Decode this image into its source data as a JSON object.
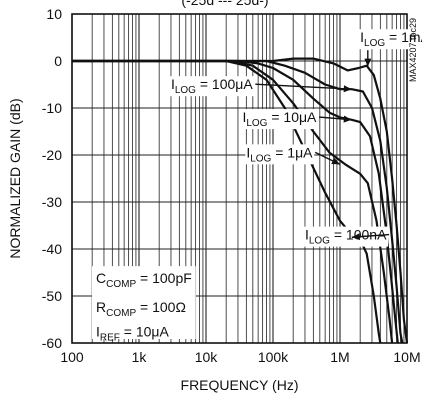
{
  "chart_data": {
    "type": "line",
    "title_fragment": "(-25d --- 25d-)",
    "xlabel": "FREQUENCY (Hz)",
    "ylabel": "NORMALIZED GAIN (dB)",
    "x_scale": "log",
    "xlim": [
      100,
      10000000
    ],
    "ylim": [
      -60,
      10
    ],
    "x_ticks": [
      {
        "value": 100,
        "label": "100"
      },
      {
        "value": 1000,
        "label": "1k"
      },
      {
        "value": 10000,
        "label": "10k"
      },
      {
        "value": 100000,
        "label": "100k"
      },
      {
        "value": 1000000,
        "label": "1M"
      },
      {
        "value": 10000000,
        "label": "10M"
      }
    ],
    "y_ticks": [
      10,
      0,
      -10,
      -20,
      -30,
      -40,
      -50,
      -60
    ],
    "grid": true,
    "part_code": "MAX4207 toc29",
    "conditions": [
      {
        "main": "C",
        "sub": "COMP",
        "rest": " = 100pF"
      },
      {
        "main": "R",
        "sub": "COMP",
        "rest": " = 100Ω"
      },
      {
        "main": "I",
        "sub": "REF",
        "rest": " = 10μA"
      }
    ],
    "series": [
      {
        "name_main": "I",
        "name_sub": "LOG",
        "name_rest": " = 1mA",
        "points": [
          [
            100,
            0
          ],
          [
            30000,
            0
          ],
          [
            100000,
            0
          ],
          [
            200000,
            0.5
          ],
          [
            400000,
            0.5
          ],
          [
            800000,
            -0.5
          ],
          [
            1300000,
            -2
          ],
          [
            1900000,
            -1.5
          ],
          [
            2500000,
            -1
          ],
          [
            3200000,
            -3
          ],
          [
            4000000,
            -8
          ],
          [
            5000000,
            -15
          ],
          [
            6000000,
            -25
          ],
          [
            7000000,
            -35
          ],
          [
            8000000,
            -45
          ],
          [
            9000000,
            -55
          ],
          [
            10000000,
            -60
          ]
        ]
      },
      {
        "name_main": "I",
        "name_sub": "LOG",
        "name_rest": " = 100μA",
        "points": [
          [
            100,
            0
          ],
          [
            30000,
            0
          ],
          [
            80000,
            0
          ],
          [
            150000,
            -1
          ],
          [
            300000,
            -2.5
          ],
          [
            600000,
            -5
          ],
          [
            1000000,
            -6
          ],
          [
            1500000,
            -6
          ],
          [
            2200000,
            -6.5
          ],
          [
            3000000,
            -10
          ],
          [
            4000000,
            -17
          ],
          [
            5000000,
            -27
          ],
          [
            6000000,
            -38
          ],
          [
            7000000,
            -48
          ],
          [
            8000000,
            -58
          ],
          [
            8500000,
            -60
          ]
        ]
      },
      {
        "name_main": "I",
        "name_sub": "LOG",
        "name_rest": " = 10μA",
        "points": [
          [
            100,
            0
          ],
          [
            30000,
            0
          ],
          [
            60000,
            -0.5
          ],
          [
            100000,
            -1.5
          ],
          [
            200000,
            -4
          ],
          [
            400000,
            -8
          ],
          [
            700000,
            -11
          ],
          [
            1000000,
            -12
          ],
          [
            1500000,
            -12.5
          ],
          [
            2000000,
            -13
          ],
          [
            2800000,
            -16
          ],
          [
            3800000,
            -24
          ],
          [
            4800000,
            -35
          ],
          [
            5800000,
            -46
          ],
          [
            6800000,
            -56
          ],
          [
            7300000,
            -60
          ]
        ]
      },
      {
        "name_main": "I",
        "name_sub": "LOG",
        "name_rest": " = 1μA",
        "points": [
          [
            100,
            0
          ],
          [
            25000,
            0
          ],
          [
            50000,
            -1
          ],
          [
            100000,
            -4
          ],
          [
            200000,
            -9
          ],
          [
            400000,
            -15
          ],
          [
            700000,
            -19.5
          ],
          [
            1200000,
            -22
          ],
          [
            2000000,
            -24
          ],
          [
            2600000,
            -26
          ],
          [
            3500000,
            -34
          ],
          [
            4500000,
            -45
          ],
          [
            5500000,
            -55
          ],
          [
            6000000,
            -60
          ]
        ]
      },
      {
        "name_main": "I",
        "name_sub": "LOG",
        "name_rest": " = 100nA",
        "points": [
          [
            100,
            0
          ],
          [
            20000,
            0
          ],
          [
            40000,
            -1
          ],
          [
            80000,
            -4
          ],
          [
            150000,
            -10
          ],
          [
            300000,
            -19
          ],
          [
            600000,
            -28
          ],
          [
            1000000,
            -34
          ],
          [
            1500000,
            -37
          ],
          [
            2000000,
            -38
          ],
          [
            2500000,
            -41
          ],
          [
            3200000,
            -50
          ],
          [
            3800000,
            -58
          ],
          [
            4000000,
            -60
          ]
        ]
      }
    ],
    "label_anchor": [
      {
        "text_x_freq": 2000000,
        "text_y": 4,
        "arrow_to": [
          2600000,
          -1.2
        ]
      },
      {
        "text_x_freq": 3000,
        "text_y": -6,
        "arrow_to": [
          1500000,
          -6.0
        ]
      },
      {
        "text_x_freq": 35000,
        "text_y": -13,
        "arrow_to": [
          1500000,
          -12.5
        ]
      },
      {
        "text_x_freq": 40000,
        "text_y": -20.5,
        "arrow_to": [
          1000000,
          -22.0
        ]
      },
      {
        "text_x_freq": 300000,
        "text_y": -38,
        "arrow_to": [
          1500000,
          -37.5
        ]
      }
    ]
  }
}
